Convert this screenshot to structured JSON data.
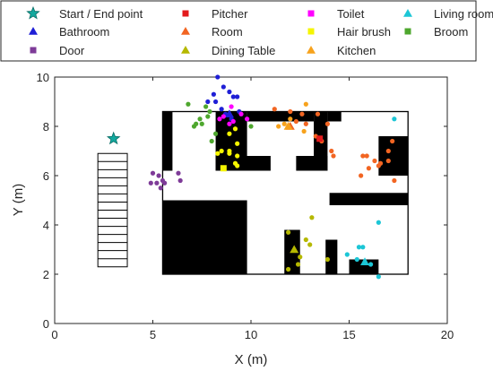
{
  "chart_data": {
    "type": "scatter",
    "xlabel": "X (m)",
    "ylabel": "Y (m)",
    "xlim": [
      0,
      20
    ],
    "ylim": [
      0,
      10
    ],
    "xticks": [
      "0",
      "5",
      "10",
      "15",
      "20"
    ],
    "yticks": [
      "0",
      "2",
      "4",
      "6",
      "8",
      "10"
    ],
    "grid": false,
    "legend_placement": "top",
    "start_end_point": [
      3.0,
      7.5
    ],
    "legend": [
      {
        "label": "Start / End point",
        "marker": "star",
        "color": "#13a89e"
      },
      {
        "label": "Bathroom",
        "marker": "triangle",
        "color": "#1f1fd6"
      },
      {
        "label": "Door",
        "marker": "square",
        "color": "#7e3b98"
      },
      {
        "label": "Pitcher",
        "marker": "square",
        "color": "#e31a1c"
      },
      {
        "label": "Room",
        "marker": "triangle",
        "color": "#f26522"
      },
      {
        "label": "Dining Table",
        "marker": "triangle",
        "color": "#b5b800"
      },
      {
        "label": "Toilet",
        "marker": "square",
        "color": "#ff00ff"
      },
      {
        "label": "Hair brush",
        "marker": "square",
        "color": "#f5f500"
      },
      {
        "label": "Kitchen",
        "marker": "triangle",
        "color": "#f7a21c"
      },
      {
        "label": "Living room",
        "marker": "triangle",
        "color": "#1cc6d6"
      },
      {
        "label": "Broom",
        "marker": "square",
        "color": "#4ea72e"
      }
    ],
    "map": {
      "stairs": {
        "x0": 2.2,
        "x1": 3.7,
        "y0": 2.3,
        "y1": 6.9,
        "steps": 14
      },
      "outline": [
        5.5,
        2.0,
        18.0,
        8.6
      ],
      "obstacles": [
        [
          5.5,
          6.2,
          6.0,
          8.6
        ],
        [
          5.5,
          2.0,
          9.8,
          5.0
        ],
        [
          8.2,
          6.2,
          9.8,
          8.6
        ],
        [
          8.2,
          6.2,
          11.0,
          6.8
        ],
        [
          9.8,
          8.2,
          13.2,
          8.6
        ],
        [
          12.3,
          6.2,
          13.9,
          6.8
        ],
        [
          13.2,
          6.2,
          13.9,
          8.6
        ],
        [
          13.9,
          8.2,
          14.6,
          8.6
        ],
        [
          16.5,
          6.0,
          18.0,
          7.6
        ],
        [
          14.0,
          4.8,
          18.0,
          5.3
        ],
        [
          11.7,
          2.0,
          12.5,
          3.8
        ],
        [
          13.8,
          2.0,
          14.4,
          3.4
        ],
        [
          15.0,
          2.0,
          16.5,
          2.6
        ]
      ]
    },
    "series": [
      {
        "name": "Bathroom",
        "color": "#1f1fd6",
        "landmark": [
          8.9,
          8.5
        ],
        "points": [
          [
            8.3,
            10.0
          ],
          [
            7.8,
            9.0
          ],
          [
            8.1,
            9.3
          ],
          [
            8.6,
            9.6
          ],
          [
            8.9,
            9.4
          ],
          [
            9.1,
            9.2
          ],
          [
            9.3,
            9.2
          ],
          [
            8.2,
            9.0
          ],
          [
            8.5,
            8.7
          ],
          [
            9.4,
            8.6
          ],
          [
            8.7,
            8.5
          ],
          [
            9.0,
            8.3
          ]
        ]
      },
      {
        "name": "Room",
        "color": "#f26522",
        "landmark": [
          12.0,
          8.0
        ],
        "points": [
          [
            11.2,
            8.7
          ],
          [
            12.0,
            8.6
          ],
          [
            12.6,
            8.5
          ],
          [
            13.4,
            8.5
          ],
          [
            12.3,
            8.2
          ],
          [
            12.8,
            8.1
          ],
          [
            13.9,
            8.1
          ],
          [
            13.3,
            7.6
          ],
          [
            13.6,
            7.4
          ],
          [
            14.1,
            7.0
          ],
          [
            14.2,
            6.8
          ],
          [
            15.7,
            6.8
          ],
          [
            15.9,
            6.8
          ],
          [
            16.0,
            6.3
          ],
          [
            15.6,
            6.0
          ],
          [
            16.3,
            6.6
          ],
          [
            16.6,
            6.5
          ],
          [
            16.5,
            6.4
          ],
          [
            17.2,
            7.4
          ],
          [
            17.0,
            7.0
          ],
          [
            17.0,
            6.6
          ],
          [
            17.3,
            5.8
          ]
        ]
      },
      {
        "name": "Kitchen",
        "color": "#f7a21c",
        "landmark": [
          11.9,
          8.0
        ],
        "points": [
          [
            12.8,
            8.9
          ],
          [
            11.4,
            8.0
          ],
          [
            11.7,
            8.1
          ],
          [
            12.0,
            8.3
          ],
          [
            12.7,
            7.8
          ]
        ]
      },
      {
        "name": "Living room",
        "color": "#1cc6d6",
        "landmark": [
          15.8,
          2.5
        ],
        "points": [
          [
            17.3,
            8.3
          ],
          [
            16.5,
            4.1
          ],
          [
            15.5,
            3.1
          ],
          [
            15.7,
            3.1
          ],
          [
            14.9,
            2.8
          ],
          [
            15.4,
            2.6
          ],
          [
            15.8,
            2.5
          ],
          [
            16.1,
            2.4
          ],
          [
            16.5,
            1.9
          ]
        ]
      },
      {
        "name": "Dining Table",
        "color": "#b5b800",
        "landmark": [
          12.2,
          3.0
        ],
        "points": [
          [
            13.1,
            4.3
          ],
          [
            11.9,
            3.7
          ],
          [
            12.8,
            3.4
          ],
          [
            13.0,
            3.2
          ],
          [
            12.5,
            2.7
          ],
          [
            12.4,
            2.4
          ],
          [
            11.9,
            2.2
          ],
          [
            13.9,
            2.6
          ]
        ]
      },
      {
        "name": "Door",
        "color": "#7e3b98",
        "landmark": null,
        "points": [
          [
            5.0,
            6.1
          ],
          [
            5.3,
            6.0
          ],
          [
            4.9,
            5.7
          ],
          [
            5.2,
            5.7
          ],
          [
            5.5,
            5.8
          ],
          [
            5.6,
            5.7
          ],
          [
            5.4,
            5.5
          ],
          [
            6.3,
            6.1
          ],
          [
            6.4,
            5.8
          ]
        ]
      },
      {
        "name": "Toilet",
        "color": "#ff00ff",
        "landmark": null,
        "points": [
          [
            9.0,
            8.8
          ],
          [
            8.6,
            8.4
          ],
          [
            9.5,
            8.5
          ],
          [
            8.9,
            8.1
          ],
          [
            8.4,
            8.3
          ],
          [
            9.1,
            8.2
          ],
          [
            9.8,
            8.3
          ]
        ]
      },
      {
        "name": "Broom",
        "color": "#4ea72e",
        "landmark": null,
        "points": [
          [
            6.8,
            8.9
          ],
          [
            7.7,
            8.8
          ],
          [
            7.9,
            8.6
          ],
          [
            7.4,
            8.3
          ],
          [
            7.8,
            8.4
          ],
          [
            7.5,
            8.1
          ],
          [
            7.1,
            8.0
          ],
          [
            7.2,
            8.1
          ],
          [
            8.0,
            7.4
          ],
          [
            8.2,
            7.7
          ],
          [
            10.0,
            8.0
          ]
        ]
      },
      {
        "name": "Pitcher",
        "color": "#e31a1c",
        "landmark": [
          13.5,
          7.5
        ],
        "points": []
      },
      {
        "name": "Hair brush",
        "color": "#f5f500",
        "landmark": [
          8.6,
          6.3
        ],
        "points": [
          [
            9.2,
            7.9
          ],
          [
            8.9,
            7.7
          ],
          [
            9.3,
            7.3
          ],
          [
            8.9,
            7.0
          ],
          [
            8.5,
            7.0
          ],
          [
            8.9,
            6.9
          ],
          [
            9.3,
            6.8
          ],
          [
            8.3,
            6.9
          ],
          [
            9.2,
            6.5
          ],
          [
            9.3,
            6.4
          ]
        ]
      }
    ]
  }
}
